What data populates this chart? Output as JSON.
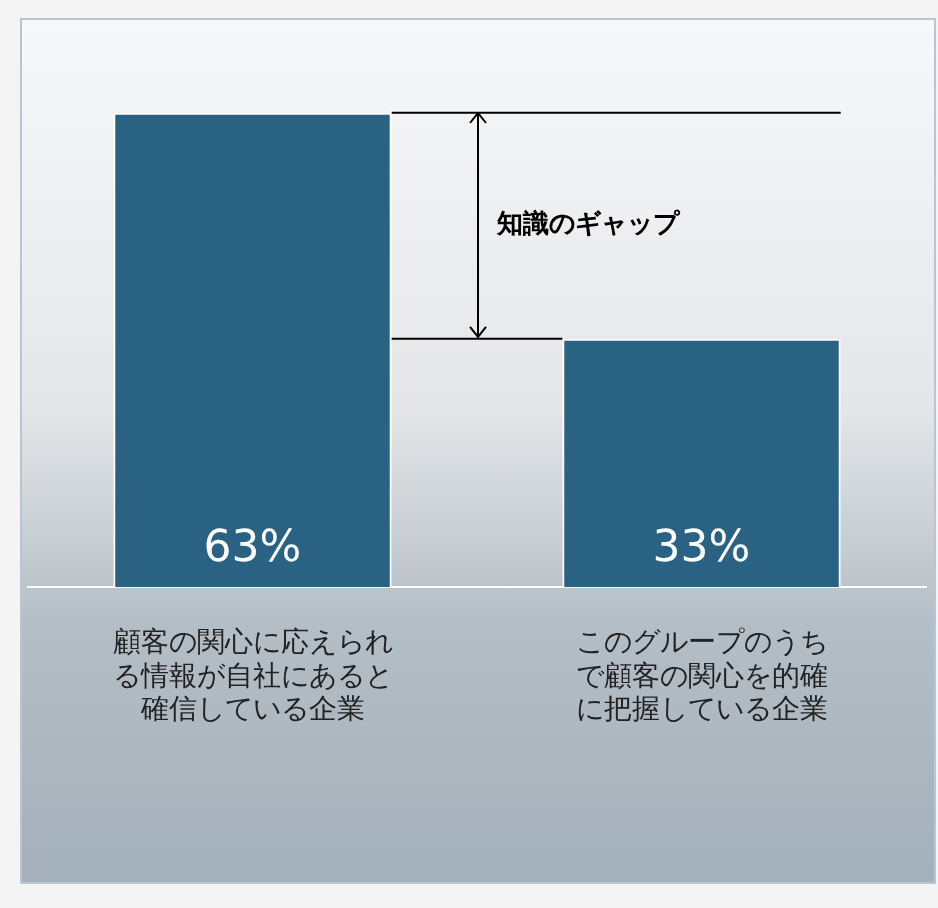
{
  "chart_data": {
    "type": "bar",
    "categories": [
      "顧客の関心に応えられる情報が自社にあると確信している企業",
      "このグループのうちで顧客の関心を的確に把握している企業"
    ],
    "values": [
      63,
      33
    ],
    "value_labels": [
      "63%",
      "33%"
    ],
    "color": "#2a6283",
    "annotations": [
      "知識のギャップ"
    ],
    "ref_lines": [
      {
        "axis": "y",
        "value": 63
      },
      {
        "axis": "y",
        "value": 33
      }
    ],
    "grid": false,
    "legend": false
  }
}
